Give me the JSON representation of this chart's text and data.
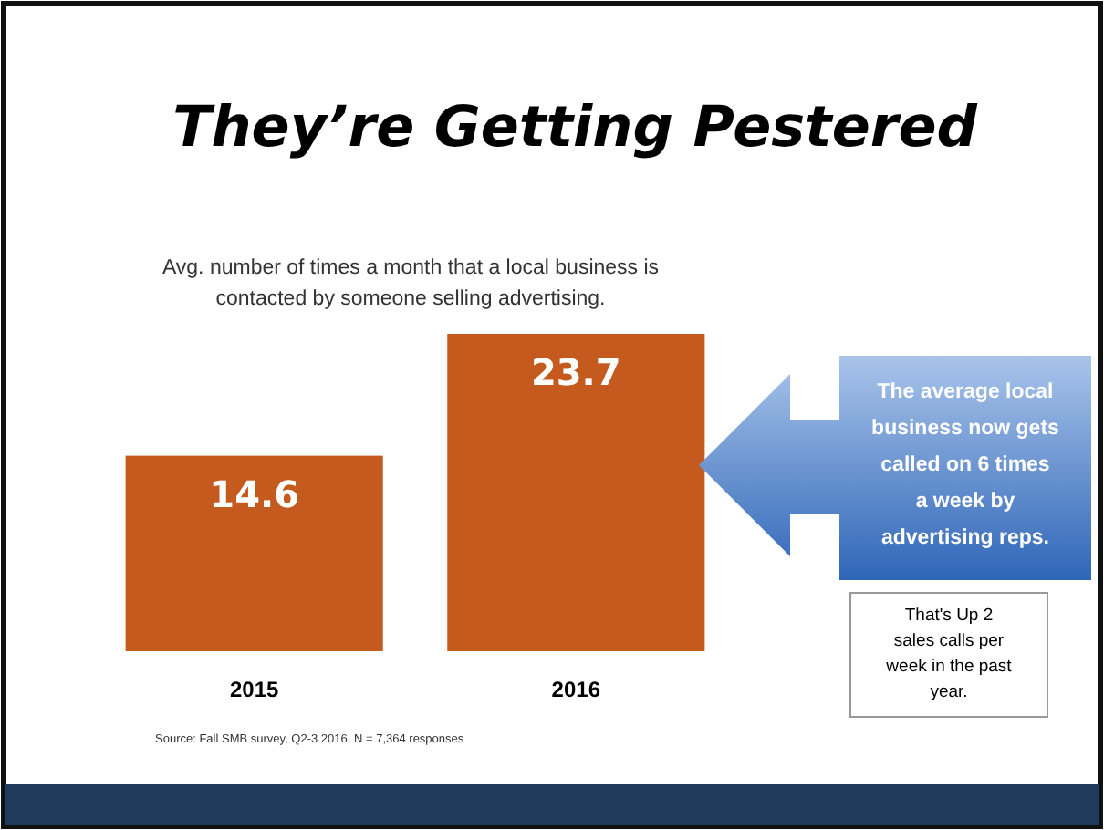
{
  "chart_data": {
    "type": "bar",
    "title": "They’re Getting Pestered",
    "subtitle": "Avg. number of times a month that a local business is contacted by someone selling advertising.",
    "categories": [
      "2015",
      "2016"
    ],
    "values": [
      14.6,
      23.7
    ],
    "color": "#c55a1e",
    "data_labels": true,
    "tick_labels": "x",
    "annotations": [
      "The average local business now gets called on 6 times a week by advertising reps.",
      "That's Up 2 sales calls per week in the past year.",
      "Source: Fall SMB survey, Q2-3 2016, N = 7,364 responses"
    ]
  }
}
